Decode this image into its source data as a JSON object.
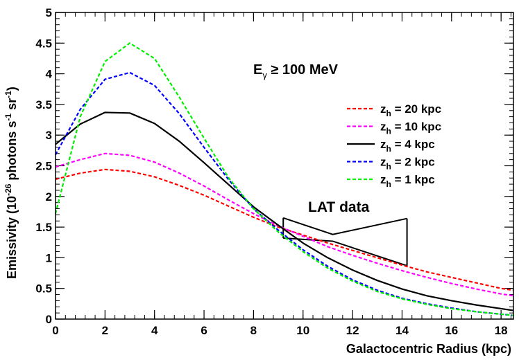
{
  "chart_data": {
    "type": "line",
    "xlabel": "Galactocentric Radius (kpc)",
    "ylabel": {
      "prefix": "Emissivity (10",
      "exp1": "-26",
      "mid": " photons s",
      "exp2": "-1",
      "mid2": " sr",
      "exp3": "-1",
      "suffix": ")"
    },
    "xlim": [
      0,
      18.5
    ],
    "ylim": [
      0,
      5
    ],
    "xticks": [
      0,
      2,
      4,
      6,
      8,
      10,
      12,
      14,
      16,
      18
    ],
    "xtick_labels": [
      "0",
      "2",
      "4",
      "6",
      "8",
      "10",
      "12",
      "14",
      "16",
      "18"
    ],
    "yticks": [
      0,
      0.5,
      1,
      1.5,
      2,
      2.5,
      3,
      3.5,
      4,
      4.5,
      5
    ],
    "ytick_labels": [
      "0",
      "0.5",
      "1",
      "1.5",
      "2",
      "2.5",
      "3",
      "3.5",
      "4",
      "4.5",
      "5"
    ],
    "annotation_energy": {
      "base": "E",
      "sub": "γ",
      "rest": " ≥ 100 MeV"
    },
    "annotation_lat": "LAT data",
    "series": [
      {
        "name": "z_h = 20 kpc",
        "legend_base": "z",
        "legend_sub": "h",
        "legend_rest": " = 20 kpc",
        "color": "#ff0000",
        "dash": true,
        "x": [
          0,
          1,
          2,
          3,
          4,
          5,
          6,
          7,
          8,
          9,
          10,
          11,
          12,
          13,
          14,
          15,
          16,
          17,
          18,
          18.5
        ],
        "y": [
          2.28,
          2.38,
          2.44,
          2.41,
          2.32,
          2.18,
          2.02,
          1.84,
          1.66,
          1.5,
          1.37,
          1.24,
          1.12,
          1.0,
          0.88,
          0.77,
          0.68,
          0.59,
          0.5,
          0.47
        ]
      },
      {
        "name": "z_h = 10 kpc",
        "legend_base": "z",
        "legend_sub": "h",
        "legend_rest": " = 10 kpc",
        "color": "#ff00ff",
        "dash": true,
        "x": [
          0,
          1,
          2,
          3,
          4,
          5,
          6,
          7,
          8,
          9,
          10,
          11,
          12,
          13,
          14,
          15,
          16,
          17,
          18,
          18.5
        ],
        "y": [
          2.48,
          2.6,
          2.7,
          2.67,
          2.56,
          2.38,
          2.17,
          1.94,
          1.72,
          1.52,
          1.35,
          1.18,
          1.04,
          0.91,
          0.79,
          0.68,
          0.58,
          0.49,
          0.41,
          0.38
        ]
      },
      {
        "name": "z_h = 4 kpc",
        "legend_base": "z",
        "legend_sub": "h",
        "legend_rest": " = 4 kpc",
        "color": "#000000",
        "dash": false,
        "x": [
          0,
          1,
          2,
          3,
          4,
          5,
          6,
          7,
          8,
          9,
          10,
          11,
          12,
          13,
          14,
          15,
          16,
          17,
          18,
          18.5
        ],
        "y": [
          2.85,
          3.18,
          3.37,
          3.36,
          3.19,
          2.9,
          2.55,
          2.19,
          1.83,
          1.53,
          1.24,
          1.0,
          0.8,
          0.63,
          0.49,
          0.38,
          0.3,
          0.23,
          0.17,
          0.14
        ]
      },
      {
        "name": "z_h = 2 kpc",
        "legend_base": "z",
        "legend_sub": "h",
        "legend_rest": " = 2 kpc",
        "color": "#0000ff",
        "dash": true,
        "x": [
          0,
          1,
          2,
          3,
          4,
          5,
          6,
          7,
          8,
          9,
          10,
          11,
          12,
          13,
          14,
          15,
          16,
          17,
          18,
          18.5
        ],
        "y": [
          2.68,
          3.42,
          3.91,
          4.02,
          3.81,
          3.35,
          2.8,
          2.27,
          1.8,
          1.45,
          1.13,
          0.86,
          0.64,
          0.47,
          0.34,
          0.25,
          0.18,
          0.12,
          0.08,
          0.06
        ]
      },
      {
        "name": "z_h = 1 kpc",
        "legend_base": "z",
        "legend_sub": "h",
        "legend_rest": " = 1 kpc",
        "color": "#00ee00",
        "dash": true,
        "x": [
          0,
          1,
          2,
          3,
          4,
          5,
          6,
          7,
          8,
          9,
          10,
          11,
          12,
          13,
          14,
          15,
          16,
          17,
          18,
          18.5
        ],
        "y": [
          1.72,
          3.3,
          4.2,
          4.5,
          4.25,
          3.62,
          2.95,
          2.3,
          1.8,
          1.42,
          1.1,
          0.83,
          0.62,
          0.45,
          0.33,
          0.24,
          0.17,
          0.12,
          0.08,
          0.06
        ]
      }
    ],
    "lat_band": {
      "x_start": 9.2,
      "x_knee": 11.2,
      "x_end": 14.2,
      "upper": [
        1.65,
        1.38,
        1.64
      ],
      "lower": [
        1.32,
        1.27,
        0.87
      ]
    }
  }
}
